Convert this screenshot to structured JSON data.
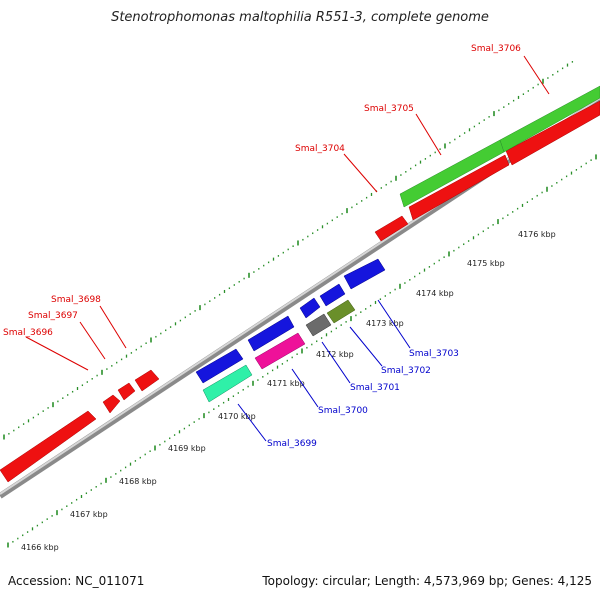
{
  "title": "Stenotrophomonas maltophilia R551-3, complete genome",
  "footer": {
    "accession": "Accession: NC_011071",
    "summary": "Topology: circular; Length: 4,573,969 bp; Genes: 4,125"
  },
  "colors": {
    "backbone": "#8c8c8c",
    "upper_ticks": "#2a8f2a",
    "lower_ticks": "#2a8f2a",
    "upper_label": "#dd0000",
    "lower_label": "#0000cc"
  },
  "ticks": [
    "4166 kbp",
    "4167 kbp",
    "4168 kbp",
    "4169 kbp",
    "4170 kbp",
    "4171 kbp",
    "4172 kbp",
    "4173 kbp",
    "4174 kbp",
    "4175 kbp",
    "4176 kbp"
  ],
  "upper_genes": [
    {
      "name": "Smal_3696",
      "color": "#ee1111"
    },
    {
      "name": "Smal_3697",
      "color": "#ee1111"
    },
    {
      "name": "Smal_3698",
      "color": "#ee1111"
    },
    {
      "name": "Smal_3704",
      "color": "#ee1111"
    },
    {
      "name": "Smal_3705",
      "color": "#ee1111"
    },
    {
      "name": "Smal_3706",
      "color": "#ee1111"
    }
  ],
  "lower_genes": [
    {
      "name": "Smal_3699",
      "color": "#2ff0a8"
    },
    {
      "name": "Smal_3700",
      "color": "#ee1199"
    },
    {
      "name": "Smal_3701",
      "color": "#6b6b6b"
    },
    {
      "name": "Smal_3702",
      "color": "#6a8f2a"
    },
    {
      "name": "Smal_3703",
      "color": "#1515dd"
    }
  ]
}
